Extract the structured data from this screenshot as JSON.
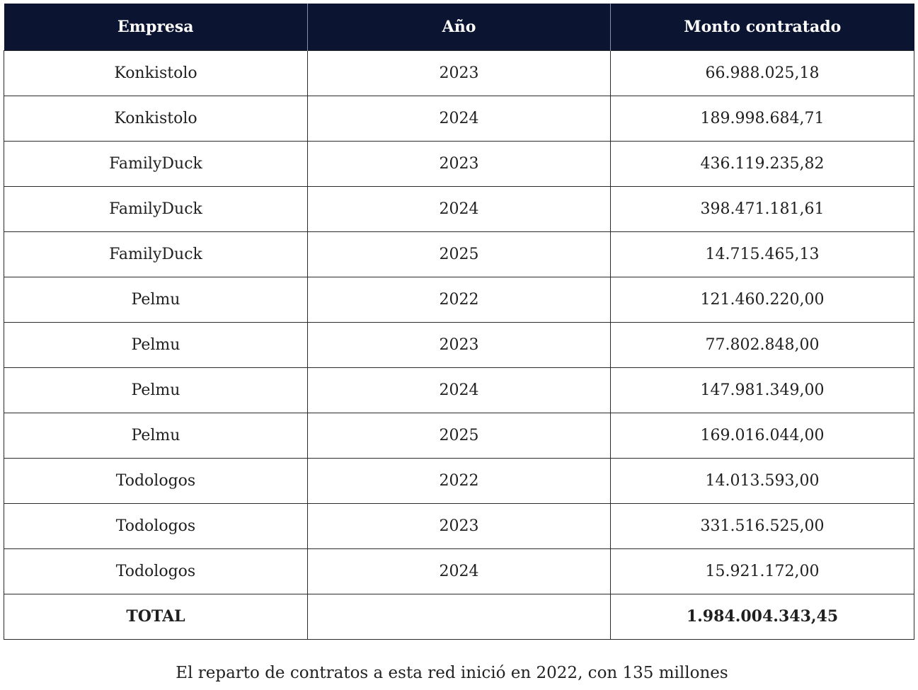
{
  "table": {
    "headers": [
      "Empresa",
      "Año",
      "Monto contratado"
    ],
    "rows": [
      [
        "Konkistolo",
        "2023",
        "66.988.025,18"
      ],
      [
        "Konkistolo",
        "2024",
        "189.998.684,71"
      ],
      [
        "FamilyDuck",
        "2023",
        "436.119.235,82"
      ],
      [
        "FamilyDuck",
        "2024",
        "398.471.181,61"
      ],
      [
        "FamilyDuck",
        "2025",
        "14.715.465,13"
      ],
      [
        "Pelmu",
        "2022",
        "121.460.220,00"
      ],
      [
        "Pelmu",
        "2023",
        "77.802.848,00"
      ],
      [
        "Pelmu",
        "2024",
        "147.981.349,00"
      ],
      [
        "Pelmu",
        "2025",
        "169.016.044,00"
      ],
      [
        "Todologos",
        "2022",
        "14.013.593,00"
      ],
      [
        "Todologos",
        "2023",
        "331.516.525,00"
      ],
      [
        "Todologos",
        "2024",
        "15.921.172,00"
      ]
    ],
    "total": [
      "TOTAL",
      "",
      "1.984.004.343,45"
    ]
  },
  "caption": "El reparto de contratos a esta red inició en 2022, con 135 millones",
  "colors": {
    "header_bg": "#0b1430",
    "header_text": "#ffffff",
    "border": "#2a2a2a"
  }
}
